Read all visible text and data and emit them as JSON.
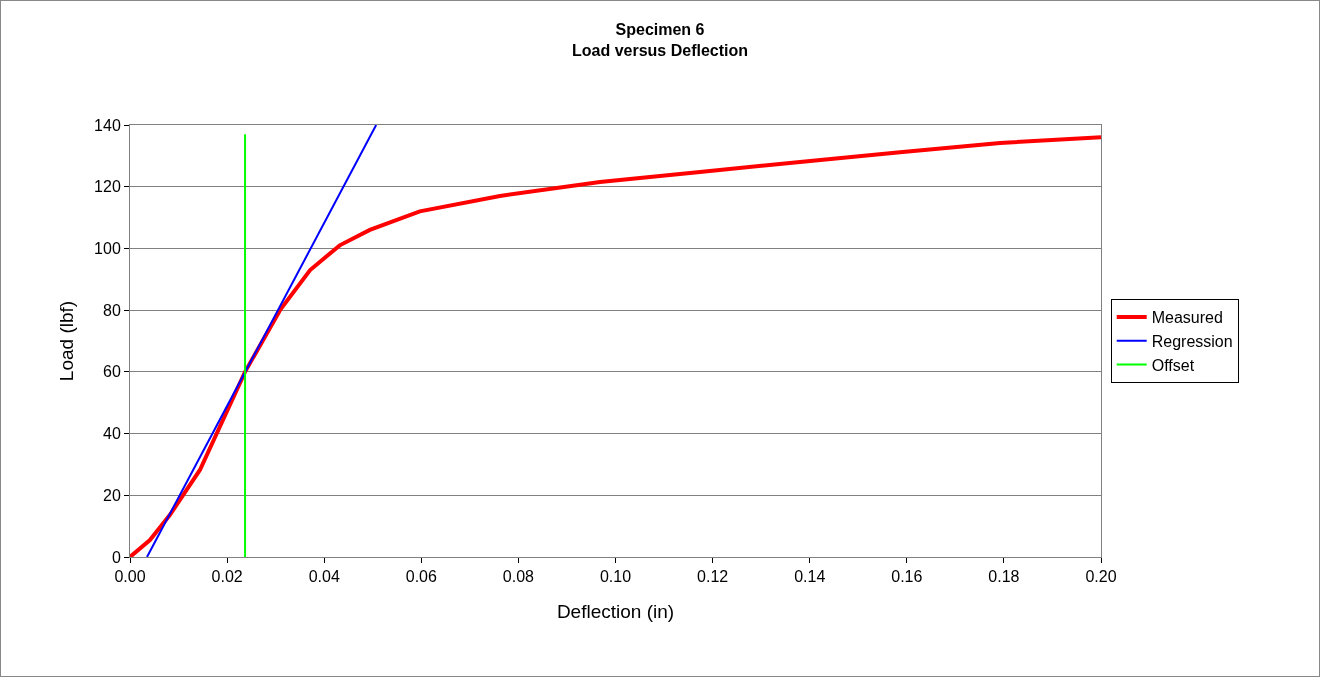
{
  "chart_data": {
    "type": "line",
    "title": "Specimen 6\nLoad versus Deflection",
    "xlabel": "Deflection (in)",
    "ylabel": "Load (lbf)",
    "series": [
      {
        "name": "Measured",
        "color": "#ff0000",
        "x": [
          0,
          0.0041,
          0.0082,
          0.0144,
          0.0237,
          0.0309,
          0.0371,
          0.0432,
          0.0494,
          0.0597,
          0.0762,
          0.0968,
          0.1174,
          0.138,
          0.1586,
          0.1792,
          0.2
        ],
        "values": [
          0,
          5.5,
          13.6,
          28.2,
          60,
          80,
          93,
          101,
          106,
          112,
          117,
          121.5,
          124.8,
          128,
          131.2,
          134.2,
          136
        ]
      },
      {
        "name": "Regression",
        "color": "#0000ff",
        "x": [
          0.0035,
          0.0507
        ],
        "values": [
          0,
          140
        ]
      },
      {
        "name": "Offset",
        "color": "#00ff00",
        "x": [
          0.0237,
          0.0237
        ],
        "values": [
          0,
          137
        ]
      }
    ],
    "xlim": [
      0,
      0.2
    ],
    "xticks": [
      {
        "value": 0,
        "label": "0.00"
      },
      {
        "value": 0.02,
        "label": "0.02"
      },
      {
        "value": 0.04,
        "label": "0.04"
      },
      {
        "value": 0.06,
        "label": "0.06"
      },
      {
        "value": 0.08,
        "label": "0.08"
      },
      {
        "value": 0.1,
        "label": "0.10"
      },
      {
        "value": 0.12,
        "label": "0.12"
      },
      {
        "value": 0.14,
        "label": "0.14"
      },
      {
        "value": 0.16,
        "label": "0.16"
      },
      {
        "value": 0.18,
        "label": "0.18"
      },
      {
        "value": 0.2,
        "label": "0.20"
      }
    ],
    "ylim": [
      0,
      140
    ],
    "yticks": [
      0,
      20,
      40,
      60,
      80,
      100,
      120,
      140
    ],
    "grid": "y",
    "legend": "right",
    "marker": "none",
    "line_style": "solid"
  }
}
